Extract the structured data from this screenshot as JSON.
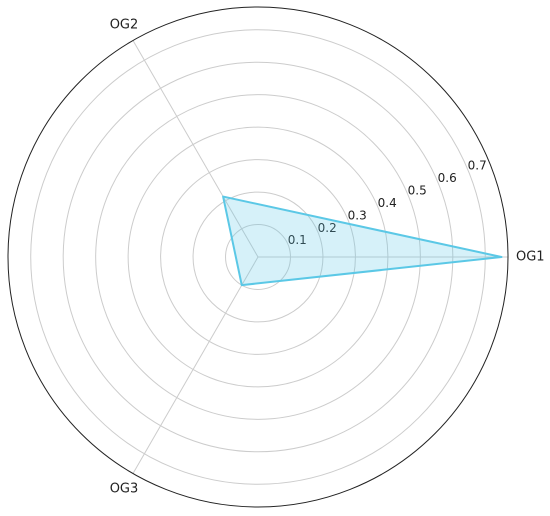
{
  "chart_data": {
    "type": "radar",
    "categories": [
      "OG1",
      "OG2",
      "OG3"
    ],
    "series": [
      {
        "color": "#5bc8e6",
        "values": [
          0.75,
          0.215,
          0.1
        ]
      }
    ],
    "ylim": [
      0,
      0.77
    ],
    "yticks": [
      0.1,
      0.2,
      0.3,
      0.4,
      0.5,
      0.6,
      0.7
    ],
    "grid": true
  }
}
